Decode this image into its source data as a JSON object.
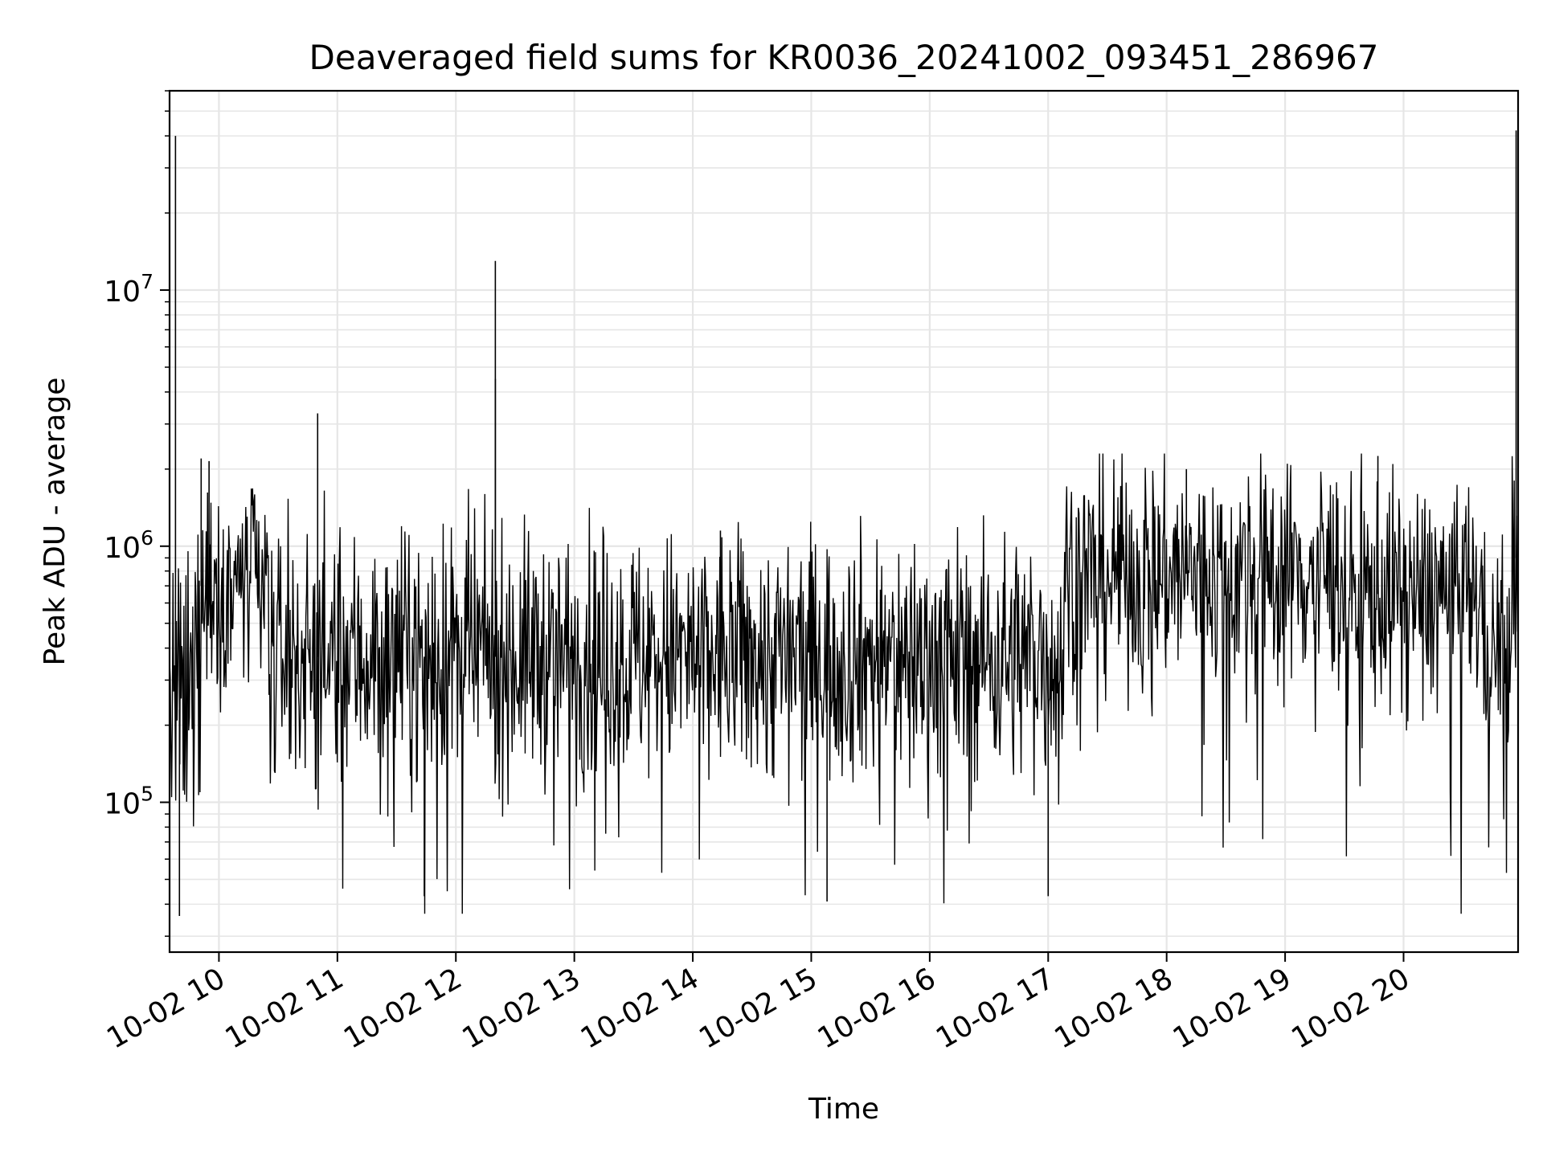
{
  "chart_data": {
    "type": "line",
    "title": "Deaveraged field sums for KR0036_20241002_093451_286967",
    "xlabel": "Time",
    "ylabel": "Peak ADU - average",
    "x_ticks": [
      "10-02 10",
      "10-02 11",
      "10-02 12",
      "10-02 13",
      "10-02 14",
      "10-02 15",
      "10-02 16",
      "10-02 17",
      "10-02 18",
      "10-02 19",
      "10-02 20"
    ],
    "x_tick_datetimes": [
      "2024-10-02 10:00",
      "2024-10-02 11:00",
      "2024-10-02 12:00",
      "2024-10-02 13:00",
      "2024-10-02 14:00",
      "2024-10-02 15:00",
      "2024-10-02 16:00",
      "2024-10-02 17:00",
      "2024-10-02 18:00",
      "2024-10-02 19:00",
      "2024-10-02 20:00"
    ],
    "xlim": [
      "2024-10-02 09:35",
      "2024-10-02 20:58"
    ],
    "y_scale": "log",
    "ylim": [
      26000,
      60000000
    ],
    "y_ticks": [
      {
        "value": 100000,
        "base": "10",
        "exp": "5"
      },
      {
        "value": 1000000,
        "base": "10",
        "exp": "6"
      },
      {
        "value": 10000000,
        "base": "10",
        "exp": "7"
      }
    ],
    "grid": true,
    "line_color": "#000000",
    "grid_color": "#e6e6e6",
    "series": [
      {
        "segments": [
          {
            "start": "2024-10-02 09:35",
            "end": "2024-10-02 09:48",
            "median": 230000,
            "spread": 0.28
          },
          {
            "start": "2024-10-02 09:48",
            "end": "2024-10-02 10:25",
            "median": 700000,
            "spread": 0.22
          },
          {
            "start": "2024-10-02 10:25",
            "end": "2024-10-02 17:08",
            "median": 370000,
            "spread": 0.24
          },
          {
            "start": "2024-10-02 17:08",
            "end": "2024-10-02 19:30",
            "median": 780000,
            "spread": 0.22
          },
          {
            "start": "2024-10-02 19:30",
            "end": "2024-10-02 20:40",
            "median": 650000,
            "spread": 0.22
          },
          {
            "start": "2024-10-02 20:40",
            "end": "2024-10-02 20:55",
            "median": 400000,
            "spread": 0.2
          },
          {
            "start": "2024-10-02 20:55",
            "end": "2024-10-02 20:58",
            "median": 900000,
            "spread": 0.25
          }
        ],
        "spikes": [
          {
            "x": "2024-10-02 09:38",
            "y": 40000000
          },
          {
            "x": "2024-10-02 09:40",
            "y": 36000
          },
          {
            "x": "2024-10-02 09:51",
            "y": 2200000
          },
          {
            "x": "2024-10-02 09:55",
            "y": 2150000
          },
          {
            "x": "2024-10-02 10:50",
            "y": 3300000
          },
          {
            "x": "2024-10-02 11:44",
            "y": 43000
          },
          {
            "x": "2024-10-02 12:20",
            "y": 13000000
          },
          {
            "x": "2024-10-02 12:20",
            "y": 4500000
          },
          {
            "x": "2024-10-02 14:14",
            "y": 1150000
          },
          {
            "x": "2024-10-02 15:08",
            "y": 41000
          },
          {
            "x": "2024-10-02 17:00",
            "y": 43000
          },
          {
            "x": "2024-10-02 18:10",
            "y": 2000000
          },
          {
            "x": "2024-10-02 19:47",
            "y": 2250000
          },
          {
            "x": "2024-10-02 20:57",
            "y": 42000000
          },
          {
            "x": "2024-10-02 20:58",
            "y": 2500000
          }
        ]
      }
    ]
  }
}
